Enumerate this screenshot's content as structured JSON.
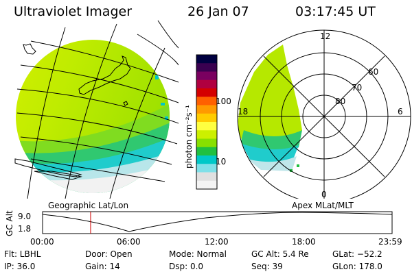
{
  "header": {
    "title": "Ultraviolet Imager",
    "date": "26 Jan 07",
    "time": "03:17:45 UT"
  },
  "left_panel": {
    "caption": "Geographic Lat/Lon"
  },
  "right_panel": {
    "caption": "Apex  MLat/MLT",
    "mlt_labels": [
      "12",
      "18",
      "6",
      "0"
    ],
    "lat_labels": [
      "60",
      "70",
      "80"
    ]
  },
  "colorbar": {
    "unit_label": "photon cm⁻²s⁻¹",
    "ticks": [
      "100",
      "10"
    ],
    "colors": [
      "#000040",
      "#3a0050",
      "#7a0060",
      "#b00040",
      "#d40000",
      "#ff6000",
      "#ff9a00",
      "#ffcc00",
      "#ffff40",
      "#ccf000",
      "#88e000",
      "#20c040",
      "#00c8c8",
      "#80e0e8",
      "#e0e0e0",
      "#f4f4f4"
    ]
  },
  "altitude_plot": {
    "ylabel": "GC Alt",
    "y_ticks": [
      "9.0",
      "1.8"
    ],
    "x_ticks": [
      "00:00",
      "06:00",
      "12:00",
      "18:00",
      "23:59"
    ],
    "marker_time": "03:17:45"
  },
  "info": {
    "filter": "Flt: LBHL",
    "ip": "IP: 36.0",
    "door": "Door: Open",
    "gain": "Gain: 14",
    "mode": "Mode: Normal",
    "dsp": "Dsp:     0.0",
    "gc_alt": "GC Alt: 5.4 Re",
    "seq": "Seq: 39",
    "glat": "GLat: −52.2",
    "glon": "GLon: 178.0"
  }
}
